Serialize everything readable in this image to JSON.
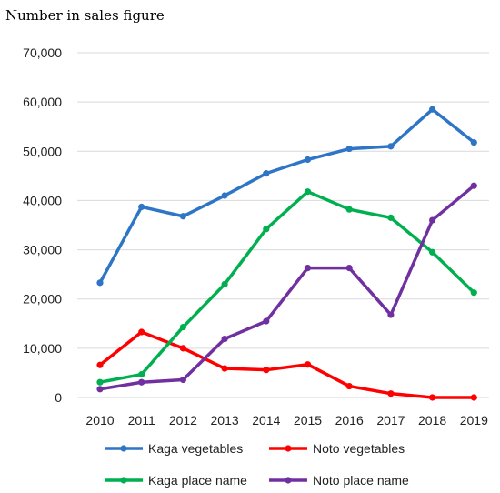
{
  "chart_data": {
    "type": "line",
    "ylabel": "Number in sales figure",
    "xlabel": "",
    "x": [
      2010,
      2011,
      2012,
      2013,
      2014,
      2015,
      2016,
      2017,
      2018,
      2019
    ],
    "ylim": [
      0,
      70000
    ],
    "yticks": [
      0,
      10000,
      20000,
      30000,
      40000,
      50000,
      60000,
      70000
    ],
    "ytick_labels": [
      "0",
      "10,000",
      "20,000",
      "30,000",
      "40,000",
      "50,000",
      "60,000",
      "70,000"
    ],
    "grid": true,
    "legend_position": "bottom",
    "series": [
      {
        "name": "Kaga vegetables",
        "color": "#2e75c6",
        "values": [
          23300,
          38700,
          36800,
          41000,
          45500,
          48300,
          50500,
          51000,
          58500,
          51800
        ]
      },
      {
        "name": "Noto vegetables",
        "color": "#ff0000",
        "values": [
          6600,
          13300,
          10000,
          5900,
          5600,
          6700,
          2300,
          800,
          0,
          0
        ]
      },
      {
        "name": "Kaga place name",
        "color": "#00b050",
        "values": [
          3100,
          4700,
          14300,
          23000,
          34200,
          41800,
          38200,
          36500,
          29500,
          21300
        ]
      },
      {
        "name": "Noto place name",
        "color": "#7030a0",
        "values": [
          1700,
          3100,
          3600,
          11900,
          15500,
          26300,
          26300,
          16800,
          36000,
          43000
        ]
      }
    ]
  }
}
